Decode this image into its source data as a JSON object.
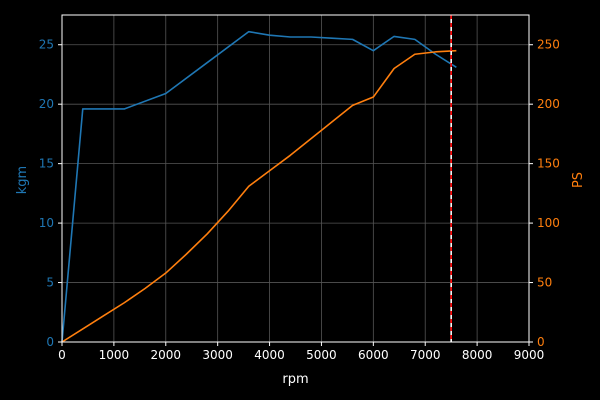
{
  "chart_data": {
    "type": "line",
    "xlabel": "rpm",
    "ylabel_left": "kgm",
    "ylabel_right": "PS",
    "xlim": [
      0,
      9000
    ],
    "ylim_left": [
      0,
      27.5
    ],
    "ylim_right": [
      0,
      275
    ],
    "x_ticks": [
      0,
      1000,
      2000,
      3000,
      4000,
      5000,
      6000,
      7000,
      8000,
      9000
    ],
    "y_left_ticks": [
      0,
      5,
      10,
      15,
      20,
      25
    ],
    "y_right_ticks": [
      0,
      50,
      100,
      150,
      200,
      250
    ],
    "grid": true,
    "redline_rpm": 7500,
    "series": [
      {
        "axis": "left",
        "color": "#1f77b4",
        "x": [
          0,
          400,
          1200,
          2000,
          2800,
          3600,
          4000,
          4400,
          4800,
          5200,
          5600,
          6000,
          6400,
          6800,
          7200,
          7600
        ],
        "y": [
          0,
          19.6,
          19.6,
          20.9,
          23.5,
          26.1,
          25.8,
          25.65,
          25.65,
          25.55,
          25.45,
          24.5,
          25.7,
          25.45,
          24.2,
          23.1
        ]
      },
      {
        "axis": "right",
        "color": "#ff7f0e",
        "x": [
          0,
          400,
          800,
          1200,
          1600,
          2000,
          2400,
          2800,
          3200,
          3600,
          4000,
          4400,
          4800,
          5200,
          5600,
          6000,
          6400,
          6800,
          7200,
          7600
        ],
        "y": [
          0,
          11,
          22,
          33,
          45,
          58,
          74,
          91,
          110,
          131,
          144,
          157,
          171,
          185,
          199,
          206,
          230,
          242,
          244,
          245
        ]
      }
    ],
    "colors": {
      "background": "#000000",
      "axes": "#ffffff",
      "left_axis": "#1f77b4",
      "right_axis": "#ff7f0e",
      "grid": "#555555",
      "redline": "#ff0000"
    }
  }
}
